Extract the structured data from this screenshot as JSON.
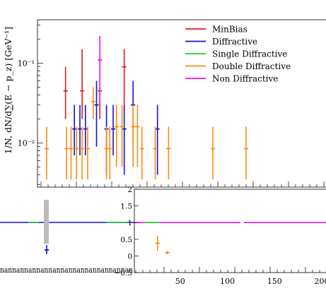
{
  "chart_data": {
    "type": "scatter",
    "ylabel": "1/N, dN/d∑(E − p_z) [GeV⁻¹]",
    "y_scale": "log",
    "ylim": [
      0.0028,
      0.35
    ],
    "xlim": [
      -60,
      200
    ],
    "y_ticks": [
      {
        "v": 0.1,
        "label": "10⁻¹"
      },
      {
        "v": 0.01,
        "label": "10⁻²"
      }
    ],
    "legend_position": "top-right",
    "series": [
      {
        "name": "MinBias",
        "color": "#e31a1c",
        "points": [
          [
            -43,
            0.045,
            0.02,
            0.09
          ],
          [
            -28,
            0.045,
            0.02,
            0.15
          ],
          [
            -12,
            0.045,
            0.02,
            0.05
          ],
          [
            10,
            0.09,
            0.03,
            0.15
          ]
        ]
      },
      {
        "name": "Diffractive",
        "color": "#1414d2",
        "points": [
          [
            -35,
            0.015,
            0.007,
            0.03
          ],
          [
            -30,
            0.015,
            0.007,
            0.03
          ],
          [
            -25,
            0.015,
            0.007,
            0.03
          ],
          [
            -15,
            0.03,
            0.009,
            0.06
          ],
          [
            -6,
            0.015,
            0.004,
            0.03
          ],
          [
            0,
            0.015,
            0.007,
            0.03
          ],
          [
            10,
            0.015,
            0.004,
            0.03
          ],
          [
            18,
            0.03,
            0.009,
            0.06
          ],
          [
            40,
            0.015,
            0.004,
            0.03
          ]
        ]
      },
      {
        "name": "Single Diffractive",
        "color": "#22cc22",
        "points": []
      },
      {
        "name": "Double Diffractive",
        "color": "#ff8a12",
        "points": [
          [
            -60,
            0.0085,
            0.0035,
            0.016
          ],
          [
            -42,
            0.0085,
            0.0035,
            0.016
          ],
          [
            -38,
            0.0085,
            0.0035,
            0.016
          ],
          [
            -33,
            0.0085,
            0.0035,
            0.016
          ],
          [
            -28,
            0.0085,
            0.0035,
            0.016
          ],
          [
            -23,
            0.0085,
            0.0035,
            0.016
          ],
          [
            -18,
            0.033,
            0.02,
            0.05
          ],
          [
            -6,
            0.0085,
            0.0035,
            0.016
          ],
          [
            -3,
            0.0085,
            0.0035,
            0.016
          ],
          [
            3,
            0.016,
            0.005,
            0.03
          ],
          [
            8,
            0.016,
            0.005,
            0.03
          ],
          [
            18,
            0.016,
            0.005,
            0.03
          ],
          [
            22,
            0.016,
            0.005,
            0.03
          ],
          [
            26,
            0.0085,
            0.0035,
            0.016
          ],
          [
            38,
            0.0085,
            0.0035,
            0.016
          ],
          [
            50,
            0.0085,
            0.0035,
            0.016
          ],
          [
            90,
            0.0085,
            0.0035,
            0.016
          ],
          [
            120,
            0.0085,
            0.0035,
            0.016
          ]
        ]
      },
      {
        "name": "Non Diffractive",
        "color": "#ee11ee",
        "points": [
          [
            -12,
            0.11,
            0.035,
            0.22
          ]
        ]
      }
    ],
    "ratio_panel": {
      "ylim": [
        -0.5,
        2
      ],
      "y_ticks": [
        "−0.5",
        "0",
        "0.5",
        "1",
        "1.5",
        "2"
      ],
      "x_ticks": [
        "50",
        "100",
        "150",
        "200"
      ],
      "reference_line": 1,
      "points": [
        {
          "series": "Diffractive",
          "x": -55,
          "y": 0.15,
          "lo": 0.05,
          "hi": 0.32
        },
        {
          "series": "Double Diffractive",
          "x": 28,
          "y": 0.38,
          "lo": 0.15,
          "hi": 0.6
        },
        {
          "series": "Double Diffractive",
          "x": 40,
          "y": 0.1,
          "lo": 0.05,
          "hi": 0.15
        }
      ]
    },
    "broken_axis_label": "nannannannannannannannannannannan"
  },
  "legend_entries": [
    {
      "label": "MinBias",
      "color": "#e31a1c"
    },
    {
      "label": "Diffractive",
      "color": "#1414d2"
    },
    {
      "label": "Single Diffractive",
      "color": "#22cc22"
    },
    {
      "label": "Double Diffractive",
      "color": "#ff8a12"
    },
    {
      "label": "Non Diffractive",
      "color": "#ee11ee"
    }
  ]
}
